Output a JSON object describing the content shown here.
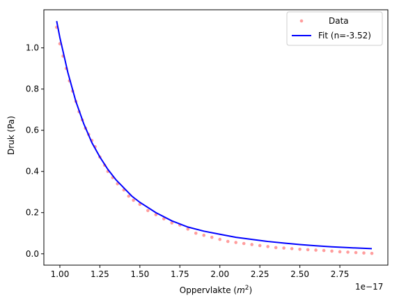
{
  "chart_data": {
    "type": "scatter",
    "xlabel": "Oppervlakte ($m^2$)",
    "xlabel_main": "Oppervlakte (",
    "xlabel_unit": "m",
    "xlabel_exp": "2",
    "xlabel_close": ")",
    "ylabel": "Druk (Pa)",
    "x_offset_text": "1e−17",
    "x_scale": 1e-17,
    "xlim": [
      0.9,
      3.05
    ],
    "ylim": [
      -0.055,
      1.185
    ],
    "xticks": [
      1.0,
      1.25,
      1.5,
      1.75,
      2.0,
      2.25,
      2.5,
      2.75
    ],
    "xtick_labels": [
      "1.00",
      "1.25",
      "1.50",
      "1.75",
      "2.00",
      "2.25",
      "2.50",
      "2.75"
    ],
    "yticks": [
      0.0,
      0.2,
      0.4,
      0.6,
      0.8,
      1.0
    ],
    "ytick_labels": [
      "0.0",
      "0.2",
      "0.4",
      "0.6",
      "0.8",
      "1.0"
    ],
    "legend_position": "top-right",
    "series": [
      {
        "name": "Data",
        "kind": "points",
        "color": "#ff4d4d",
        "x": [
          0.98,
          1.0,
          1.02,
          1.04,
          1.06,
          1.08,
          1.1,
          1.12,
          1.14,
          1.16,
          1.18,
          1.2,
          1.22,
          1.25,
          1.28,
          1.3,
          1.33,
          1.36,
          1.4,
          1.43,
          1.46,
          1.5,
          1.55,
          1.6,
          1.65,
          1.7,
          1.75,
          1.8,
          1.85,
          1.9,
          1.95,
          2.0,
          2.05,
          2.1,
          2.15,
          2.2,
          2.25,
          2.3,
          2.35,
          2.4,
          2.45,
          2.5,
          2.55,
          2.6,
          2.65,
          2.7,
          2.75,
          2.8,
          2.85,
          2.9,
          2.95
        ],
        "y": [
          1.1,
          1.02,
          0.96,
          0.9,
          0.84,
          0.79,
          0.74,
          0.69,
          0.65,
          0.61,
          0.58,
          0.55,
          0.52,
          0.47,
          0.43,
          0.4,
          0.37,
          0.34,
          0.31,
          0.28,
          0.26,
          0.24,
          0.21,
          0.19,
          0.17,
          0.15,
          0.14,
          0.12,
          0.1,
          0.09,
          0.08,
          0.07,
          0.06,
          0.055,
          0.05,
          0.045,
          0.04,
          0.035,
          0.03,
          0.028,
          0.025,
          0.022,
          0.02,
          0.018,
          0.016,
          0.013,
          0.01,
          0.008,
          0.006,
          0.004,
          0.002
        ]
      },
      {
        "name": "Fit (n=-3.52)",
        "kind": "line",
        "color": "#0000ff",
        "x": [
          0.98,
          1.0,
          1.05,
          1.1,
          1.15,
          1.2,
          1.25,
          1.3,
          1.35,
          1.4,
          1.45,
          1.5,
          1.6,
          1.7,
          1.8,
          1.9,
          2.0,
          2.1,
          2.2,
          2.3,
          2.4,
          2.5,
          2.6,
          2.7,
          2.8,
          2.95
        ],
        "y": [
          1.13,
          1.05,
          0.88,
          0.74,
          0.63,
          0.54,
          0.47,
          0.41,
          0.36,
          0.32,
          0.28,
          0.25,
          0.2,
          0.16,
          0.13,
          0.11,
          0.095,
          0.08,
          0.07,
          0.06,
          0.052,
          0.045,
          0.039,
          0.034,
          0.03,
          0.025
        ]
      }
    ]
  }
}
